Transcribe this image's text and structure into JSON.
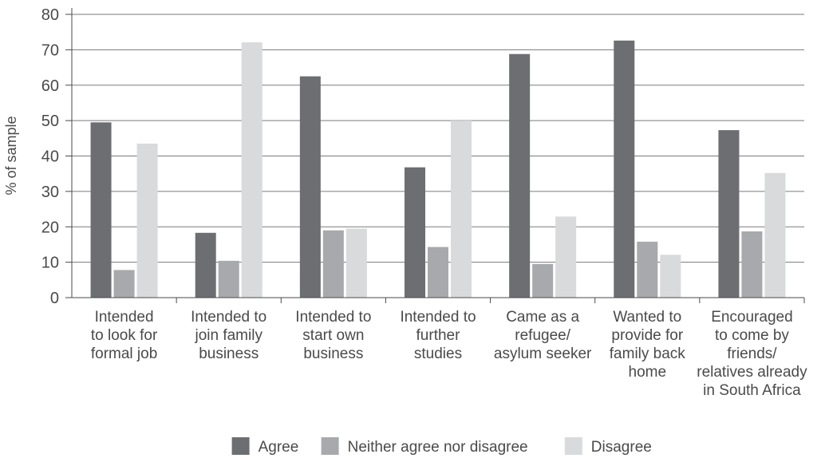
{
  "chart_data": {
    "type": "bar",
    "title": "",
    "xlabel": "",
    "ylabel": "% of sample",
    "ylim": [
      0,
      80
    ],
    "yticks": [
      0,
      10,
      20,
      30,
      40,
      50,
      60,
      70,
      80
    ],
    "grid": true,
    "legend_position": "bottom",
    "categories": [
      [
        "Intended",
        "to look for",
        "formal job"
      ],
      [
        "Intended to",
        "join family",
        "business"
      ],
      [
        "Intended to",
        "start own",
        "business"
      ],
      [
        "Intended to",
        "further",
        "studies"
      ],
      [
        "Came as a",
        "refugee/",
        "asylum seeker"
      ],
      [
        "Wanted to",
        "provide for",
        "family back",
        "home"
      ],
      [
        "Encouraged",
        "to come by",
        "friends/",
        "relatives already",
        "in South Africa"
      ]
    ],
    "series": [
      {
        "name": "Agree",
        "color": "#6d6e71",
        "values": [
          49.5,
          18.3,
          62.5,
          36.8,
          68.8,
          72.6,
          47.3
        ]
      },
      {
        "name": "Neither agree nor disagree",
        "color": "#a7a9ac",
        "values": [
          7.8,
          10.4,
          19.0,
          14.3,
          9.5,
          15.8,
          18.7
        ]
      },
      {
        "name": "Disagree",
        "color": "#d9dadb",
        "values": [
          43.5,
          72.1,
          19.5,
          50.0,
          22.9,
          12.1,
          35.2
        ]
      }
    ]
  }
}
